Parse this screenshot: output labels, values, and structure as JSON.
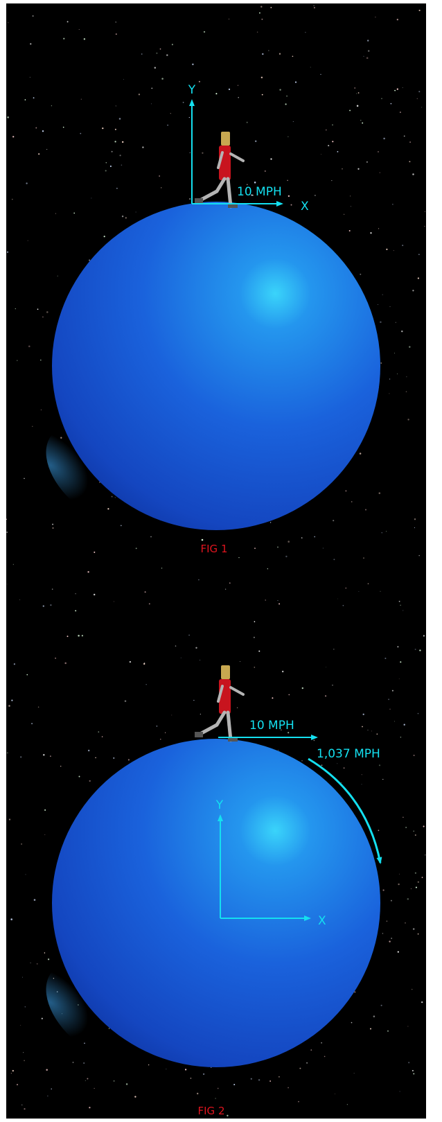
{
  "figures": [
    {
      "caption": "FIG 1",
      "axis_y_label": "Y",
      "axis_x_label": "X",
      "speed_label": "10 MPH"
    },
    {
      "caption": "FIG 2",
      "axis_y_label": "Y",
      "axis_x_label": "X",
      "speed_label": "10 MPH",
      "rotation_label": "1,037 MPH"
    }
  ],
  "colors": {
    "background": "#000000",
    "sphere_light": "#34c9f5",
    "sphere_mid": "#1a5fe0",
    "sphere_dark": "#0a2fa0",
    "annotation": "#14e0f0",
    "caption": "#e0141e",
    "figure_shirt": "#c8141e",
    "figure_limbs": "#b4b4b4",
    "figure_head": "#c8a850"
  }
}
